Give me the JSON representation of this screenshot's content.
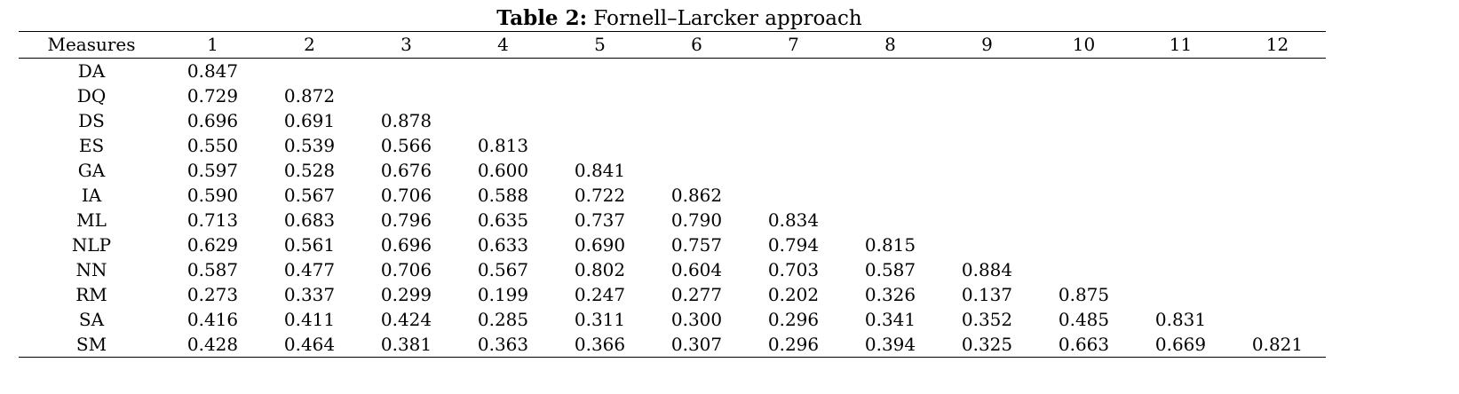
{
  "caption": {
    "label": "Table 2:",
    "text": "Fornell–Larcker approach"
  },
  "table": {
    "headers": [
      "Measures",
      "1",
      "2",
      "3",
      "4",
      "5",
      "6",
      "7",
      "8",
      "9",
      "10",
      "11",
      "12"
    ],
    "rows": [
      {
        "measure": "DA",
        "values": [
          "0.847"
        ]
      },
      {
        "measure": "DQ",
        "values": [
          "0.729",
          "0.872"
        ]
      },
      {
        "measure": "DS",
        "values": [
          "0.696",
          "0.691",
          "0.878"
        ]
      },
      {
        "measure": "ES",
        "values": [
          "0.550",
          "0.539",
          "0.566",
          "0.813"
        ]
      },
      {
        "measure": "GA",
        "values": [
          "0.597",
          "0.528",
          "0.676",
          "0.600",
          "0.841"
        ]
      },
      {
        "measure": "IA",
        "values": [
          "0.590",
          "0.567",
          "0.706",
          "0.588",
          "0.722",
          "0.862"
        ]
      },
      {
        "measure": "ML",
        "values": [
          "0.713",
          "0.683",
          "0.796",
          "0.635",
          "0.737",
          "0.790",
          "0.834"
        ]
      },
      {
        "measure": "NLP",
        "values": [
          "0.629",
          "0.561",
          "0.696",
          "0.633",
          "0.690",
          "0.757",
          "0.794",
          "0.815"
        ]
      },
      {
        "measure": "NN",
        "values": [
          "0.587",
          "0.477",
          "0.706",
          "0.567",
          "0.802",
          "0.604",
          "0.703",
          "0.587",
          "0.884"
        ]
      },
      {
        "measure": "RM",
        "values": [
          "0.273",
          "0.337",
          "0.299",
          "0.199",
          "0.247",
          "0.277",
          "0.202",
          "0.326",
          "0.137",
          "0.875"
        ]
      },
      {
        "measure": "SA",
        "values": [
          "0.416",
          "0.411",
          "0.424",
          "0.285",
          "0.311",
          "0.300",
          "0.296",
          "0.341",
          "0.352",
          "0.485",
          "0.831"
        ]
      },
      {
        "measure": "SM",
        "values": [
          "0.428",
          "0.464",
          "0.381",
          "0.363",
          "0.366",
          "0.307",
          "0.296",
          "0.394",
          "0.325",
          "0.663",
          "0.669",
          "0.821"
        ]
      }
    ]
  }
}
